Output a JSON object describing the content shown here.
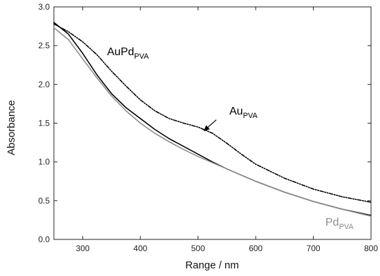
{
  "chart_data": {
    "type": "line",
    "xlabel": "Range / nm",
    "ylabel": "Absorbance",
    "xlim": [
      250,
      800
    ],
    "ylim": [
      0.0,
      3.0
    ],
    "grid": false,
    "x_ticks": [
      300,
      400,
      500,
      600,
      700,
      800
    ],
    "y_ticks": [
      0.0,
      0.5,
      1.0,
      1.5,
      2.0,
      2.5,
      3.0
    ],
    "x_tick_labels": [
      "300",
      "400",
      "500",
      "600",
      "700",
      "800"
    ],
    "y_tick_labels": [
      "0.0",
      "0.5",
      "1.0",
      "1.5",
      "2.0",
      "2.5",
      "3.0"
    ],
    "series": [
      {
        "id": "au",
        "color": "#000000",
        "style": "dash-dot-dot",
        "x": [
          250,
          275,
          300,
          325,
          350,
          375,
          400,
          425,
          450,
          475,
          500,
          525,
          550,
          575,
          600,
          650,
          700,
          750,
          800
        ],
        "y": [
          2.78,
          2.68,
          2.55,
          2.38,
          2.17,
          1.98,
          1.8,
          1.66,
          1.56,
          1.5,
          1.45,
          1.37,
          1.24,
          1.1,
          0.97,
          0.79,
          0.65,
          0.55,
          0.48
        ]
      },
      {
        "id": "aupd",
        "color": "#000000",
        "style": "solid",
        "x": [
          250,
          275,
          300,
          325,
          350,
          375,
          400,
          425,
          450,
          475,
          500,
          525,
          550,
          575,
          600,
          650,
          700,
          750,
          800
        ],
        "y": [
          2.8,
          2.65,
          2.4,
          2.12,
          1.88,
          1.7,
          1.56,
          1.42,
          1.3,
          1.2,
          1.1,
          1.0,
          0.91,
          0.83,
          0.75,
          0.61,
          0.49,
          0.39,
          0.31
        ]
      },
      {
        "id": "pd",
        "color": "#8c8c8c",
        "style": "solid",
        "x": [
          250,
          275,
          300,
          325,
          350,
          375,
          400,
          425,
          450,
          475,
          500,
          525,
          550,
          575,
          600,
          650,
          700,
          750,
          800
        ],
        "y": [
          2.73,
          2.58,
          2.33,
          2.08,
          1.85,
          1.66,
          1.5,
          1.37,
          1.26,
          1.16,
          1.07,
          0.99,
          0.91,
          0.83,
          0.75,
          0.61,
          0.49,
          0.39,
          0.3
        ]
      }
    ],
    "annotations": [
      {
        "id": "aupd",
        "main": "AuPd",
        "sub": "PVA",
        "color": "#000000"
      },
      {
        "id": "au",
        "main": "Au",
        "sub": "PVA",
        "color": "#000000",
        "arrow_to": [
          510,
          1.4
        ]
      },
      {
        "id": "pd",
        "main": "Pd",
        "sub": "PVA",
        "color": "#8c8c8c"
      }
    ]
  }
}
